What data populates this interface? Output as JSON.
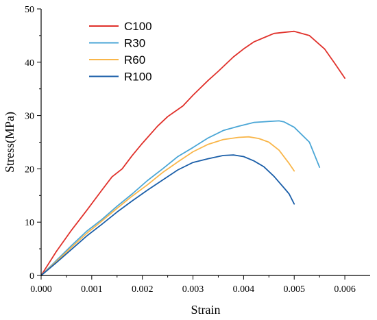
{
  "chart_data": {
    "type": "line",
    "title": "",
    "xlabel": "Strain",
    "ylabel": "Stress(MPa)",
    "xlim": [
      0,
      0.0065
    ],
    "ylim": [
      0,
      50
    ],
    "x_ticks": [
      "0.000",
      "0.001",
      "0.002",
      "0.003",
      "0.004",
      "0.005",
      "0.006"
    ],
    "x_tick_values": [
      0,
      0.001,
      0.002,
      0.003,
      0.004,
      0.005,
      0.006
    ],
    "y_ticks": [
      "0",
      "10",
      "20",
      "30",
      "40",
      "50"
    ],
    "y_tick_values": [
      0,
      10,
      20,
      30,
      40,
      50
    ],
    "grid": false,
    "legend_position": "top-left",
    "series": [
      {
        "name": "C100",
        "color": "#e0302a",
        "x": [
          0,
          0.0003,
          0.0006,
          0.0009,
          0.0012,
          0.0014,
          0.0016,
          0.0018,
          0.002,
          0.0023,
          0.0025,
          0.0028,
          0.003,
          0.0033,
          0.0035,
          0.0038,
          0.004,
          0.0042,
          0.0044,
          0.0046,
          0.0048,
          0.005,
          0.0053,
          0.0056,
          0.0058,
          0.006
        ],
        "y": [
          0,
          4.5,
          8.5,
          12.2,
          16.0,
          18.5,
          20.0,
          22.5,
          24.8,
          28.0,
          29.8,
          31.8,
          33.8,
          36.6,
          38.3,
          41.0,
          42.5,
          43.8,
          44.6,
          45.4,
          45.6,
          45.8,
          45.0,
          42.5,
          39.8,
          37.0
        ]
      },
      {
        "name": "R30",
        "color": "#4aa6d6",
        "x": [
          0,
          0.0003,
          0.0006,
          0.0009,
          0.0012,
          0.0015,
          0.0018,
          0.0021,
          0.0024,
          0.0027,
          0.003,
          0.0033,
          0.0036,
          0.0039,
          0.0042,
          0.0045,
          0.0047,
          0.0048,
          0.005,
          0.0053,
          0.0055
        ],
        "y": [
          0,
          2.8,
          5.6,
          8.3,
          10.5,
          13.0,
          15.3,
          17.8,
          20.0,
          22.3,
          24.0,
          25.8,
          27.2,
          28.0,
          28.7,
          28.9,
          29.0,
          28.8,
          27.8,
          25.0,
          20.3
        ]
      },
      {
        "name": "R60",
        "color": "#f9b64a",
        "x": [
          0,
          0.0003,
          0.0006,
          0.0009,
          0.0012,
          0.0015,
          0.0018,
          0.0021,
          0.0024,
          0.0027,
          0.003,
          0.0033,
          0.0036,
          0.0039,
          0.0041,
          0.0043,
          0.0045,
          0.0047,
          0.0049,
          0.005
        ],
        "y": [
          0,
          2.6,
          5.3,
          7.9,
          10.2,
          12.6,
          14.9,
          17.0,
          19.3,
          21.3,
          23.2,
          24.6,
          25.5,
          25.9,
          26.0,
          25.7,
          25.0,
          23.5,
          21.0,
          19.6
        ]
      },
      {
        "name": "R100",
        "color": "#1a5ea8",
        "x": [
          0,
          0.0003,
          0.0006,
          0.0009,
          0.0012,
          0.0015,
          0.0018,
          0.0021,
          0.0024,
          0.0027,
          0.003,
          0.0033,
          0.0036,
          0.0038,
          0.004,
          0.0042,
          0.0044,
          0.0046,
          0.0048,
          0.0049,
          0.005
        ],
        "y": [
          0,
          2.4,
          4.9,
          7.4,
          9.6,
          11.9,
          14.0,
          16.0,
          17.9,
          19.8,
          21.2,
          21.9,
          22.5,
          22.6,
          22.3,
          21.5,
          20.4,
          18.6,
          16.4,
          15.3,
          13.4
        ]
      }
    ]
  }
}
